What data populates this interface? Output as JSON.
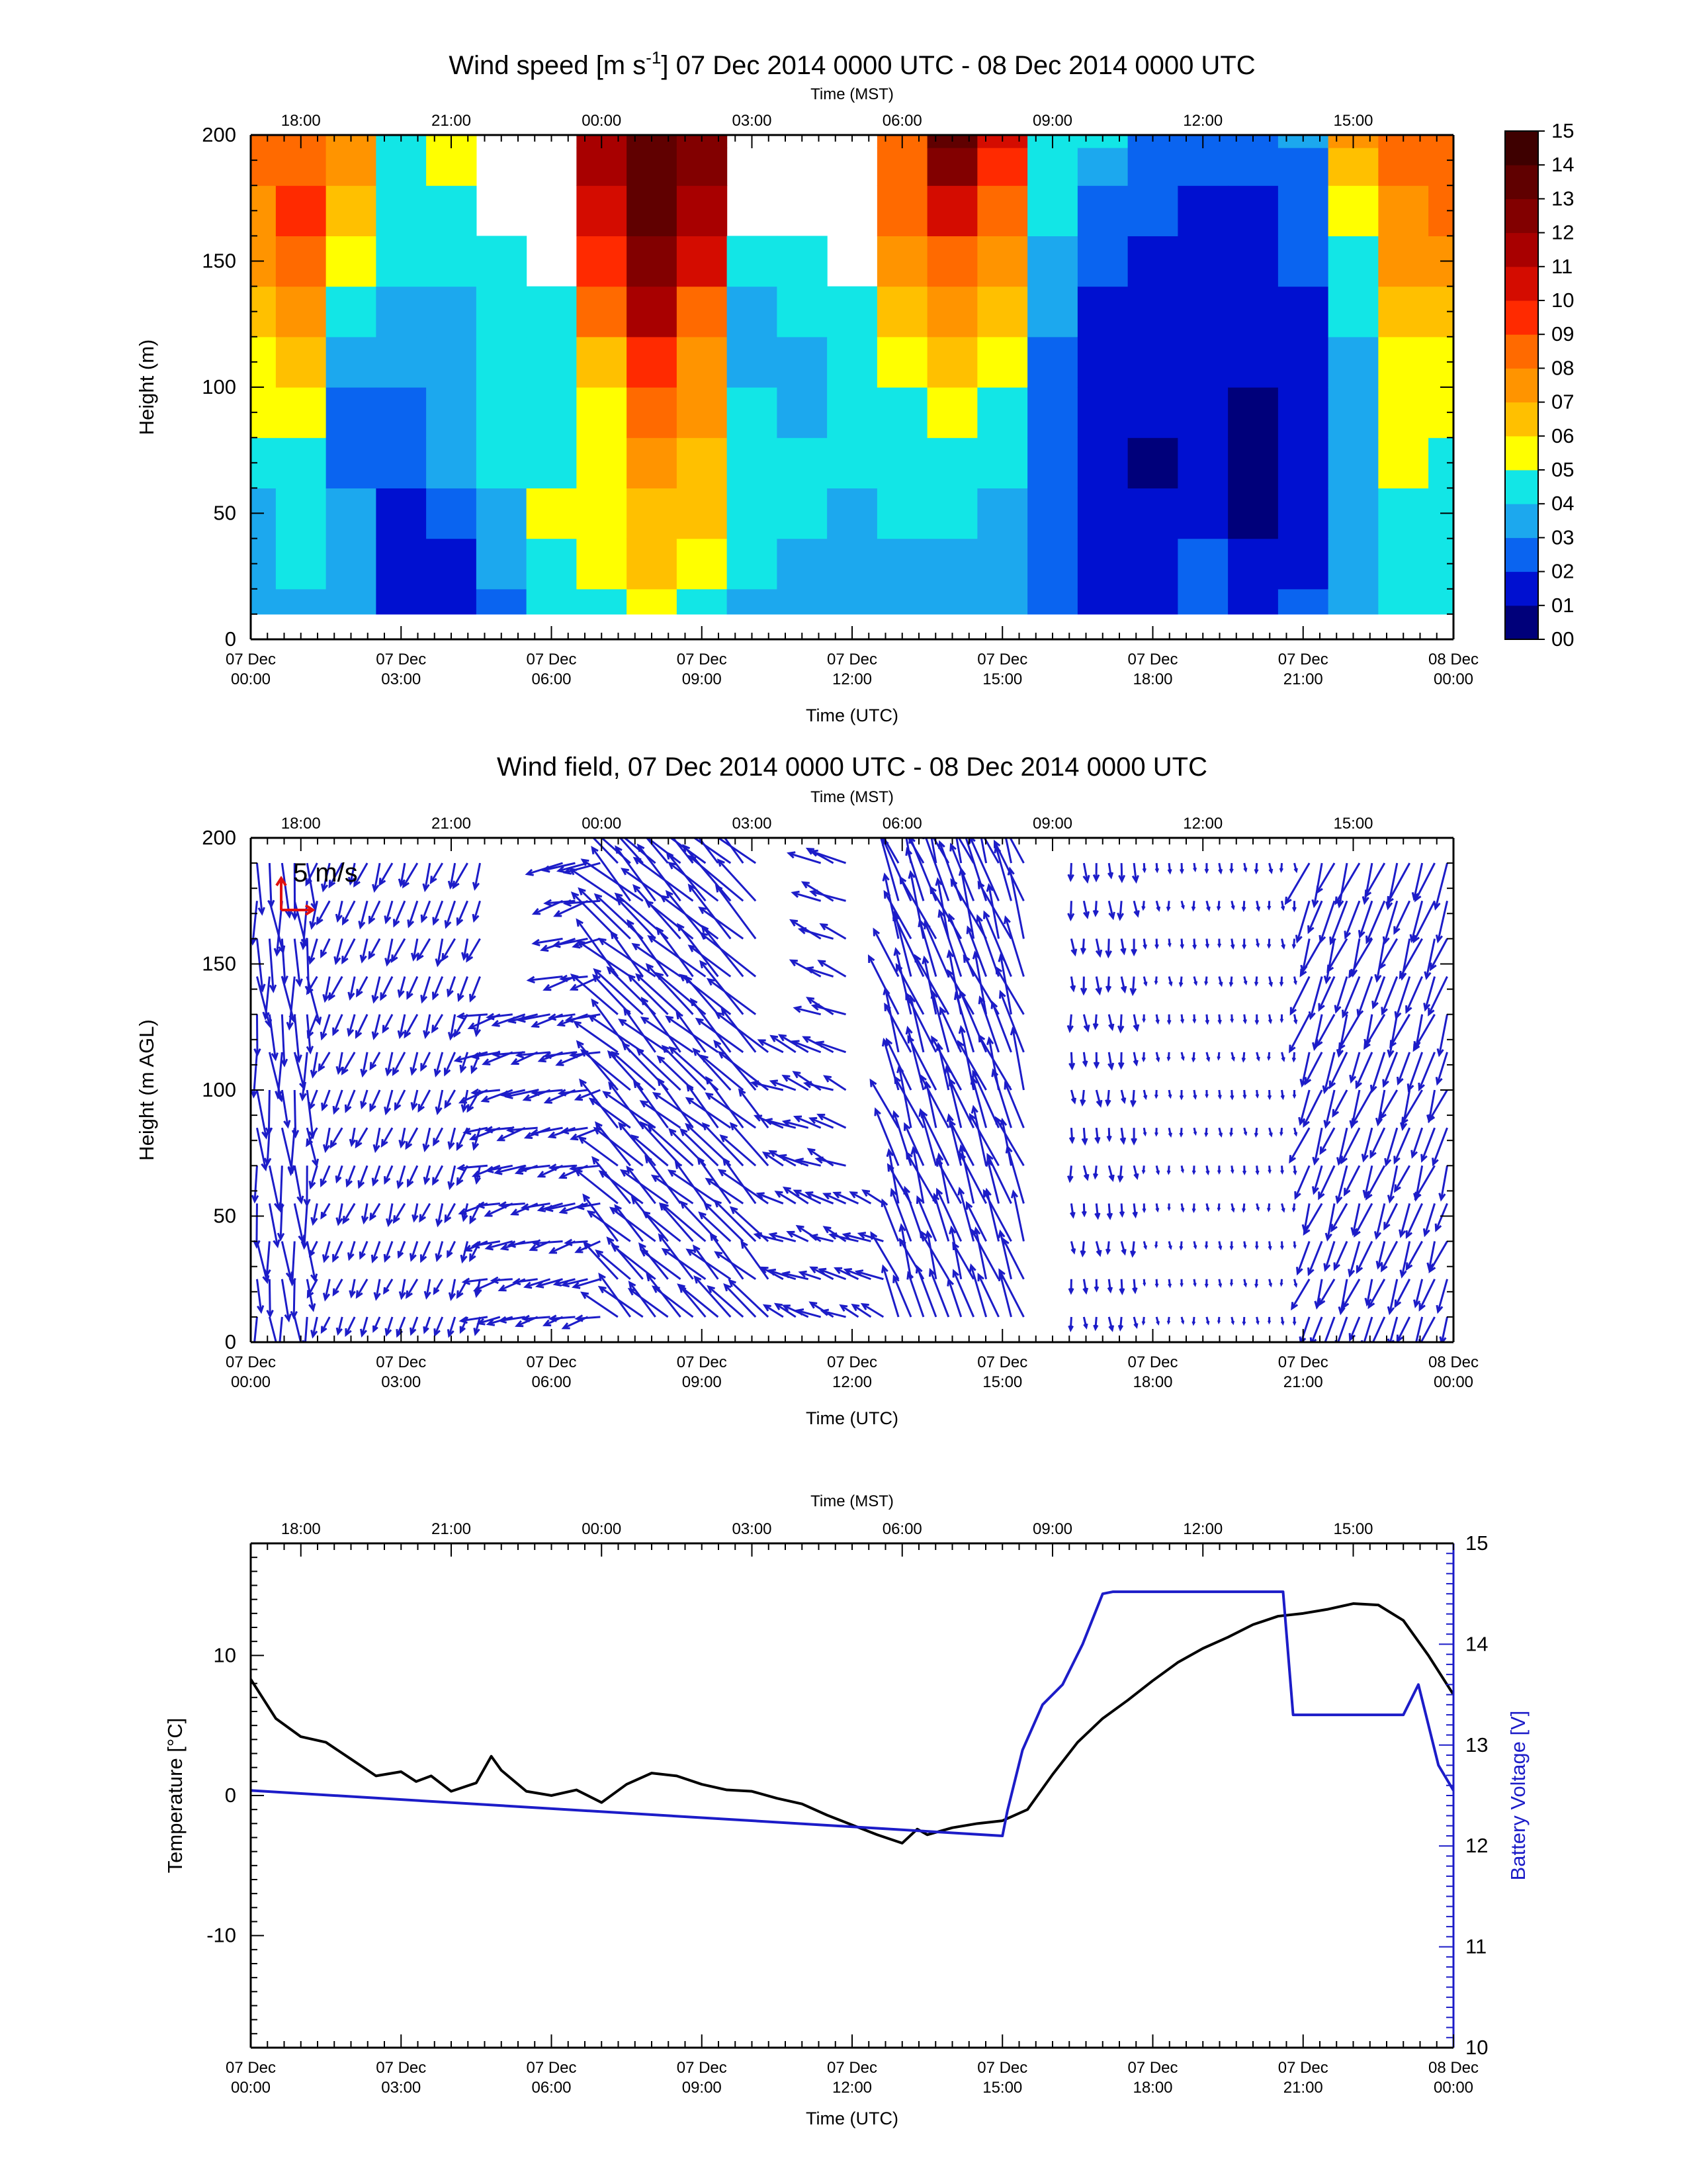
{
  "colors": {
    "axis": "#000000",
    "temperature_line": "#000000",
    "battery_line": "#1c1cc8",
    "vectors": "#1c1cc8",
    "reference_vector": "#e01010"
  },
  "chart_data": [
    {
      "type": "heatmap",
      "title": "Wind speed [m s-1] 07 Dec 2014 0000 UTC - 08 Dec 2014 0000 UTC",
      "title_parts": {
        "pre": "Wind speed [m s",
        "sup": "-1",
        "post": "] 07 Dec 2014 0000 UTC - 08 Dec 2014 0000 UTC"
      },
      "xlabel_bottom": "Time (UTC)",
      "xlabel_top": "Time (MST)",
      "ylabel": "Height (m)",
      "x_unit": "hours since 07 Dec 2014 0000 UTC",
      "xlim": [
        0,
        24
      ],
      "ylim": [
        0,
        200
      ],
      "x_ticks_bottom": [
        {
          "x": 0,
          "line1": "07 Dec",
          "line2": "00:00"
        },
        {
          "x": 3,
          "line1": "07 Dec",
          "line2": "03:00"
        },
        {
          "x": 6,
          "line1": "07 Dec",
          "line2": "06:00"
        },
        {
          "x": 9,
          "line1": "07 Dec",
          "line2": "09:00"
        },
        {
          "x": 12,
          "line1": "07 Dec",
          "line2": "12:00"
        },
        {
          "x": 15,
          "line1": "07 Dec",
          "line2": "15:00"
        },
        {
          "x": 18,
          "line1": "07 Dec",
          "line2": "18:00"
        },
        {
          "x": 21,
          "line1": "07 Dec",
          "line2": "21:00"
        },
        {
          "x": 24,
          "line1": "08 Dec",
          "line2": "00:00"
        }
      ],
      "x_ticks_top": [
        {
          "x": 1,
          "label": "18:00"
        },
        {
          "x": 4,
          "label": "21:00"
        },
        {
          "x": 7,
          "label": "00:00"
        },
        {
          "x": 10,
          "label": "03:00"
        },
        {
          "x": 13,
          "label": "06:00"
        },
        {
          "x": 16,
          "label": "09:00"
        },
        {
          "x": 19,
          "label": "12:00"
        },
        {
          "x": 22,
          "label": "15:00"
        }
      ],
      "y_ticks": [
        0,
        50,
        100,
        150,
        200
      ],
      "colorbar": {
        "labels": [
          "00",
          "01",
          "02",
          "03",
          "04",
          "05",
          "06",
          "07",
          "08",
          "09",
          "10",
          "11",
          "12",
          "13",
          "14",
          "15"
        ],
        "colors": [
          "#00007a",
          "#0010d0",
          "#0a64f0",
          "#1ca8ee",
          "#12e6e6",
          "#ffff00",
          "#ffc000",
          "#ff9400",
          "#ff6a00",
          "#ff2a00",
          "#d40c00",
          "#a80000",
          "#820000",
          "#600000",
          "#3e0000"
        ]
      },
      "time_hours": [
        0,
        1,
        2,
        3,
        4,
        5,
        6,
        7,
        8,
        9,
        10,
        11,
        12,
        13,
        14,
        15,
        16,
        17,
        18,
        19,
        20,
        21,
        22,
        23,
        24
      ],
      "heights_m": [
        10,
        30,
        50,
        70,
        90,
        110,
        130,
        150,
        170,
        190,
        200
      ],
      "values_ms": [
        [
          3,
          3,
          3,
          4,
          5,
          5,
          6,
          7,
          7,
          8,
          8
        ],
        [
          3,
          4,
          4,
          4,
          5,
          6,
          7,
          8,
          9,
          8,
          8
        ],
        [
          3,
          3,
          3,
          2,
          2,
          3,
          4,
          5,
          6,
          7,
          7
        ],
        [
          1,
          1,
          1,
          2,
          2,
          3,
          3,
          4,
          4,
          4,
          4
        ],
        [
          1,
          1,
          2,
          3,
          3,
          3,
          3,
          4,
          4,
          5,
          5
        ],
        [
          2,
          3,
          3,
          4,
          4,
          4,
          4,
          4,
          null,
          null,
          null
        ],
        [
          4,
          4,
          5,
          4,
          4,
          4,
          4,
          null,
          null,
          null,
          null
        ],
        [
          4,
          5,
          5,
          5,
          5,
          6,
          8,
          9,
          10,
          11,
          11
        ],
        [
          5,
          6,
          6,
          7,
          8,
          9,
          11,
          12,
          13,
          13,
          13
        ],
        [
          4,
          5,
          6,
          6,
          7,
          7,
          8,
          10,
          11,
          12,
          12
        ],
        [
          3,
          4,
          4,
          4,
          4,
          3,
          3,
          4,
          null,
          null,
          null
        ],
        [
          3,
          3,
          4,
          4,
          3,
          3,
          4,
          4,
          null,
          null,
          null
        ],
        [
          3,
          3,
          3,
          4,
          4,
          4,
          4,
          null,
          null,
          null,
          null
        ],
        [
          3,
          3,
          4,
          4,
          4,
          5,
          6,
          7,
          8,
          8,
          8
        ],
        [
          3,
          3,
          4,
          4,
          5,
          6,
          7,
          8,
          10,
          12,
          13
        ],
        [
          3,
          3,
          3,
          4,
          4,
          5,
          6,
          7,
          8,
          9,
          10
        ],
        [
          2,
          2,
          2,
          2,
          2,
          2,
          3,
          3,
          4,
          4,
          4
        ],
        [
          1,
          1,
          1,
          1,
          1,
          1,
          1,
          2,
          2,
          3,
          4
        ],
        [
          1,
          1,
          1,
          0,
          1,
          1,
          1,
          1,
          2,
          2,
          2
        ],
        [
          2,
          2,
          1,
          1,
          1,
          1,
          1,
          1,
          1,
          2,
          2
        ],
        [
          1,
          1,
          0,
          0,
          0,
          1,
          1,
          1,
          1,
          2,
          2
        ],
        [
          2,
          1,
          1,
          1,
          1,
          1,
          1,
          2,
          2,
          2,
          3
        ],
        [
          3,
          3,
          3,
          3,
          3,
          3,
          4,
          4,
          5,
          6,
          7
        ],
        [
          4,
          4,
          4,
          5,
          5,
          5,
          6,
          7,
          7,
          8,
          8
        ],
        [
          4,
          4,
          4,
          4,
          5,
          5,
          6,
          7,
          8,
          8,
          8
        ]
      ]
    },
    {
      "type": "quiver",
      "title": "Wind field, 07 Dec 2014 0000 UTC - 08 Dec 2014 0000 UTC",
      "xlabel_bottom": "Time (UTC)",
      "xlabel_top": "Time (MST)",
      "ylabel": "Height (m AGL)",
      "xlim": [
        0,
        24
      ],
      "ylim": [
        0,
        200
      ],
      "y_ticks": [
        0,
        50,
        100,
        150,
        200
      ],
      "reference_vector_label": "5 m/s",
      "reference_vector_ms": 5,
      "heights_m": [
        10,
        25,
        40,
        55,
        70,
        85,
        100,
        115,
        130,
        145,
        160,
        175,
        190
      ],
      "segments": [
        {
          "t0": 0.0,
          "t1": 1.2,
          "dir": "south",
          "speed": 6
        },
        {
          "t0": 1.2,
          "t1": 4.6,
          "dir": "south-southwest",
          "speed": 3
        },
        {
          "t0": 4.6,
          "t1": 7.2,
          "dir": "west",
          "speed": 4
        },
        {
          "t0": 7.2,
          "t1": 10.5,
          "dir": "northwest",
          "speed": 8
        },
        {
          "t0": 10.5,
          "t1": 12.8,
          "dir": "west-northwest",
          "speed": 4
        },
        {
          "t0": 12.8,
          "t1": 15.6,
          "dir": "north-northwest",
          "speed": 8
        },
        {
          "t0": 16.0,
          "t1": 17.7,
          "dir": "south",
          "speed": 2
        },
        {
          "t0": 17.7,
          "t1": 21.0,
          "dir": "south",
          "speed": 1
        },
        {
          "t0": 21.0,
          "t1": 24.0,
          "dir": "south-southwest",
          "speed": 5
        }
      ],
      "empty_regions": [
        {
          "t0": 4.6,
          "t1": 6.2,
          "h_min": 135
        },
        {
          "t0": 10.3,
          "t1": 11.2,
          "h_min": 125
        },
        {
          "t0": 12.1,
          "t1": 12.8,
          "h_min": 60
        },
        {
          "t0": 15.6,
          "t1": 16.2,
          "h_min": 0
        }
      ]
    },
    {
      "type": "line",
      "title": "",
      "xlabel_bottom": "Time (UTC)",
      "xlabel_top": "Time (MST)",
      "ylabel_left": "Temperature [°C]",
      "ylabel_right": "Battery Voltage [V]",
      "xlim": [
        0,
        24
      ],
      "ylim_left": [
        -18,
        18
      ],
      "ylim_right": [
        10,
        15
      ],
      "y_ticks_left": [
        -10,
        0,
        10
      ],
      "y_ticks_right": [
        10,
        11,
        12,
        13,
        14,
        15
      ],
      "series": [
        {
          "name": "",
          "axis": "left",
          "x": [
            0,
            0.5,
            1,
            1.5,
            2,
            2.5,
            3,
            3.3,
            3.6,
            4,
            4.5,
            4.8,
            5,
            5.5,
            6,
            6.5,
            7,
            7.5,
            8,
            8.5,
            9,
            9.5,
            10,
            10.5,
            11,
            11.5,
            12,
            12.5,
            13,
            13.3,
            13.5,
            14,
            14.5,
            15,
            15.5,
            16,
            16.5,
            17,
            17.5,
            18,
            18.5,
            19,
            19.5,
            20,
            20.5,
            21,
            21.5,
            22,
            22.5,
            23,
            23.5,
            24
          ],
          "y": [
            8.3,
            5.5,
            4.2,
            3.8,
            2.6,
            1.4,
            1.7,
            1.0,
            1.4,
            0.3,
            0.9,
            2.8,
            1.8,
            0.3,
            0.0,
            0.4,
            -0.5,
            0.8,
            1.6,
            1.4,
            0.8,
            0.4,
            0.3,
            -0.2,
            -0.6,
            -1.4,
            -2.1,
            -2.8,
            -3.4,
            -2.4,
            -2.8,
            -2.3,
            -2.0,
            -1.8,
            -1.0,
            1.5,
            3.8,
            5.5,
            6.8,
            8.2,
            9.5,
            10.5,
            11.3,
            12.2,
            12.8,
            13.0,
            13.3,
            13.7,
            13.6,
            12.5,
            10.0,
            7.2
          ]
        },
        {
          "name": "",
          "axis": "right",
          "x": [
            0,
            15,
            15.1,
            15.4,
            15.8,
            16.2,
            16.6,
            17.0,
            17.2,
            19.0,
            20.6,
            20.8,
            21.0,
            23.0,
            23.3,
            23.5,
            23.7,
            24.0
          ],
          "y": [
            12.55,
            12.1,
            12.35,
            12.95,
            13.4,
            13.6,
            14.0,
            14.5,
            14.52,
            14.52,
            14.52,
            13.3,
            13.3,
            13.3,
            13.6,
            13.2,
            12.8,
            12.55
          ]
        }
      ]
    }
  ]
}
